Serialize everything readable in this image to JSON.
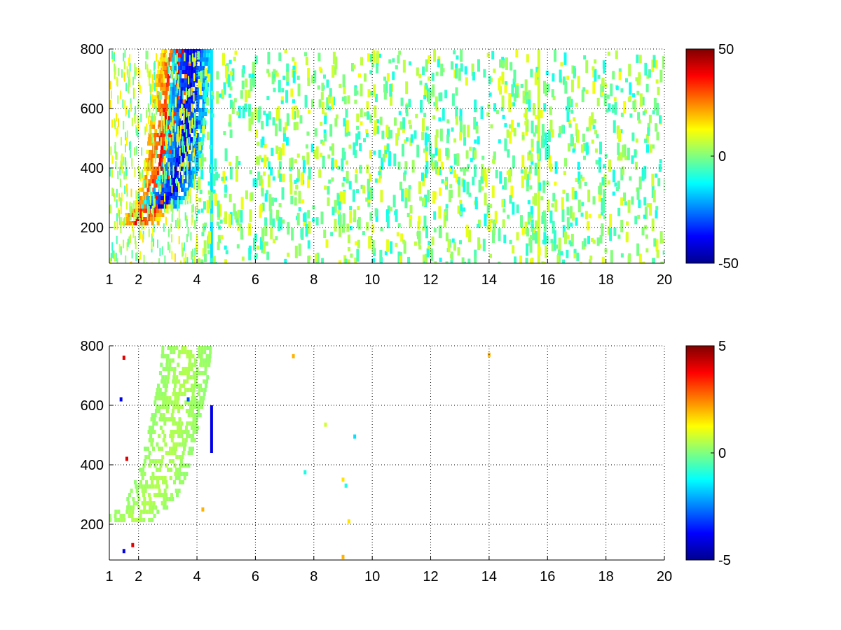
{
  "chart_data": [
    {
      "type": "heatmap",
      "title": "",
      "xlabel": "",
      "ylabel": "",
      "xlim": [
        1,
        20
      ],
      "ylim": [
        80,
        800
      ],
      "x_ticks": [
        1,
        2,
        4,
        6,
        8,
        10,
        12,
        14,
        16,
        18,
        20
      ],
      "y_ticks": [
        200,
        400,
        600,
        800
      ],
      "grid": true,
      "colormap": "jet",
      "color_range": [
        -50,
        50
      ],
      "colorbar_ticks": [
        50,
        0,
        -50
      ],
      "colorbar_placement": "right",
      "features": [
        {
          "kind": "ridge",
          "sign": "positive",
          "value": 40,
          "points": [
            [
              2.0,
              230
            ],
            [
              2.5,
              290
            ],
            [
              2.8,
              400
            ],
            [
              3.0,
              550
            ],
            [
              3.2,
              700
            ],
            [
              3.4,
              800
            ]
          ]
        },
        {
          "kind": "ridge",
          "sign": "negative",
          "value": -40,
          "points": [
            [
              2.7,
              280
            ],
            [
              3.1,
              330
            ],
            [
              3.4,
              420
            ],
            [
              3.6,
              550
            ],
            [
              3.7,
              700
            ],
            [
              3.8,
              800
            ]
          ]
        },
        {
          "kind": "vertical_streak",
          "x": 4.5,
          "y": [
            80,
            800
          ],
          "value": -15
        },
        {
          "kind": "vertical_streak",
          "x": 15.7,
          "y": [
            80,
            800
          ],
          "value": 8
        },
        {
          "kind": "scatter_noise",
          "x_range": [
            4,
            20
          ],
          "values": [
            -12,
            12
          ],
          "density": "sparse"
        }
      ]
    },
    {
      "type": "heatmap",
      "title": "",
      "xlabel": "",
      "ylabel": "",
      "xlim": [
        1,
        20
      ],
      "ylim": [
        80,
        800
      ],
      "x_ticks": [
        1,
        2,
        4,
        6,
        8,
        10,
        12,
        14,
        16,
        18,
        20
      ],
      "y_ticks": [
        200,
        400,
        600,
        800
      ],
      "grid": true,
      "colormap": "jet",
      "color_range": [
        -5,
        5
      ],
      "colorbar_ticks": [
        5,
        0,
        -5
      ],
      "colorbar_placement": "right",
      "features": [
        {
          "kind": "band",
          "value": 0.5,
          "points": [
            [
              1.7,
              230
            ],
            [
              2.3,
              270
            ],
            [
              2.8,
              380
            ],
            [
              3.2,
              550
            ],
            [
              3.5,
              700
            ],
            [
              3.6,
              790
            ]
          ]
        },
        {
          "kind": "vertical_streak",
          "x": 4.5,
          "y": [
            440,
            600
          ],
          "value": -4
        },
        {
          "kind": "point",
          "x": 14.0,
          "y": 770,
          "value": 2
        },
        {
          "kind": "point",
          "x": 7.3,
          "y": 765,
          "value": 2
        },
        {
          "kind": "point",
          "x": 9.0,
          "y": 350,
          "value": 1.5
        },
        {
          "kind": "point",
          "x": 9.1,
          "y": 330,
          "value": -1
        },
        {
          "kind": "point",
          "x": 9.0,
          "y": 90,
          "value": 2
        },
        {
          "kind": "point",
          "x": 9.2,
          "y": 210,
          "value": 1.5
        },
        {
          "kind": "point",
          "x": 7.7,
          "y": 375,
          "value": -1
        },
        {
          "kind": "point",
          "x": 8.4,
          "y": 535,
          "value": 0.8
        },
        {
          "kind": "point",
          "x": 9.4,
          "y": 495,
          "value": -1.5
        },
        {
          "kind": "point",
          "x": 1.4,
          "y": 620,
          "value": -4
        },
        {
          "kind": "point",
          "x": 1.5,
          "y": 760,
          "value": 4
        },
        {
          "kind": "point",
          "x": 1.6,
          "y": 420,
          "value": 4
        },
        {
          "kind": "point",
          "x": 1.8,
          "y": 130,
          "value": 4
        },
        {
          "kind": "point",
          "x": 1.5,
          "y": 110,
          "value": -4
        },
        {
          "kind": "point",
          "x": 4.2,
          "y": 250,
          "value": 2
        },
        {
          "kind": "point",
          "x": 3.7,
          "y": 620,
          "value": -3
        }
      ]
    }
  ]
}
